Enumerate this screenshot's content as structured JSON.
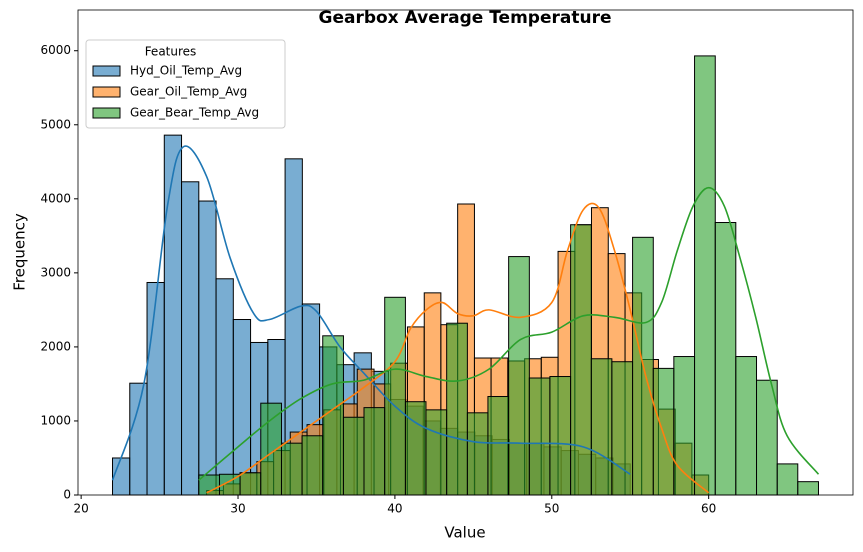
{
  "chart_data": {
    "type": "histogram",
    "title": "Gearbox Average Temperature",
    "x_label": "Value",
    "y_label": "Frequency",
    "legend_title": "Features",
    "legend_position": "upper left",
    "xlim": [
      19.8,
      69.2
    ],
    "ylim": [
      0,
      6550
    ],
    "xticks": [
      20,
      30,
      40,
      50,
      60
    ],
    "yticks": [
      0,
      1000,
      2000,
      3000,
      4000,
      5000,
      6000
    ],
    "grid": false,
    "series": [
      {
        "name": "Hyd_Oil_Temp_Avg",
        "color": "#1f77b4",
        "bins": [
          22,
          23.1,
          24.2,
          25.3,
          26.4,
          27.5,
          28.6,
          29.7,
          30.8,
          31.9,
          33,
          34.1,
          35.2,
          36.3,
          37.4,
          38.5,
          39.6,
          40.7,
          41.8,
          42.9,
          44,
          45.1,
          46.2,
          47.3,
          48.4,
          49.5,
          50.6,
          51.7,
          52.8,
          53.9,
          55
        ],
        "values": [
          500,
          1510,
          2870,
          4860,
          4230,
          3970,
          2920,
          2370,
          2060,
          2100,
          4540,
          2580,
          2000,
          1760,
          1920,
          1670,
          1290,
          1200,
          1000,
          900,
          850,
          800,
          750,
          700,
          700,
          650,
          600,
          550,
          500,
          420
        ],
        "kde": {
          "x": [
            22,
            24,
            25.5,
            26.5,
            28,
            29.5,
            31,
            32,
            34,
            35,
            36.5,
            38,
            40,
            42,
            45,
            48,
            52,
            55
          ],
          "y": [
            200,
            1500,
            3900,
            4700,
            4300,
            3200,
            2450,
            2370,
            2550,
            2480,
            2000,
            1650,
            1200,
            900,
            720,
            700,
            650,
            280
          ]
        }
      },
      {
        "name": "Gear_Oil_Temp_Avg",
        "color": "#ff7f0e",
        "bins": [
          28,
          29.07,
          30.13,
          31.2,
          32.27,
          33.33,
          34.4,
          35.47,
          36.53,
          37.6,
          38.67,
          39.73,
          40.8,
          41.87,
          42.93,
          44,
          45.07,
          46.13,
          47.2,
          48.27,
          49.33,
          50.4,
          51.47,
          52.53,
          53.6,
          54.67,
          55.73,
          56.8,
          57.87,
          58.93,
          60
        ],
        "values": [
          60,
          150,
          300,
          450,
          600,
          850,
          950,
          1150,
          1230,
          1700,
          1500,
          1780,
          2270,
          2730,
          2300,
          3930,
          1850,
          1850,
          1810,
          1840,
          1860,
          3290,
          3650,
          3880,
          3260,
          2730,
          1830,
          1160,
          700,
          270
        ],
        "kde": {
          "x": [
            28,
            30,
            32,
            34,
            36,
            38,
            40,
            41,
            42,
            43,
            44,
            45,
            46,
            48,
            50,
            51,
            52,
            53,
            54,
            55,
            56,
            57,
            58,
            60
          ],
          "y": [
            30,
            250,
            550,
            850,
            1150,
            1450,
            1800,
            2250,
            2500,
            2600,
            2450,
            2420,
            2500,
            2400,
            2600,
            3300,
            3850,
            3880,
            3300,
            2500,
            1600,
            900,
            400,
            30
          ]
        }
      },
      {
        "name": "Gear_Bear_Temp_Avg",
        "color": "#2ca02c",
        "bins": [
          27.5,
          28.82,
          30.13,
          31.45,
          32.77,
          34.08,
          35.4,
          36.72,
          38.03,
          39.35,
          40.67,
          41.98,
          43.3,
          44.62,
          45.93,
          47.25,
          48.57,
          49.88,
          51.2,
          52.52,
          53.83,
          55.15,
          56.47,
          57.78,
          59.1,
          60.42,
          61.73,
          63.05,
          64.37,
          65.68,
          67
        ],
        "values": [
          270,
          280,
          300,
          1240,
          700,
          800,
          2150,
          1050,
          1180,
          2670,
          1260,
          1150,
          2320,
          1110,
          1330,
          3220,
          1580,
          1600,
          3650,
          1840,
          1800,
          3480,
          1710,
          1870,
          5930,
          3680,
          1870,
          1550,
          420,
          180
        ],
        "kde": {
          "x": [
            27.5,
            30,
            32,
            34,
            36,
            38,
            40,
            42,
            44,
            46,
            48,
            50,
            52,
            54,
            56,
            57,
            58,
            59,
            60,
            61,
            62,
            63,
            64,
            65,
            67
          ],
          "y": [
            200,
            650,
            1000,
            1300,
            1500,
            1550,
            1700,
            1600,
            1540,
            1700,
            2100,
            2200,
            2420,
            2400,
            2330,
            2600,
            3300,
            3900,
            4150,
            3900,
            3200,
            2400,
            1500,
            800,
            280
          ]
        }
      }
    ]
  }
}
